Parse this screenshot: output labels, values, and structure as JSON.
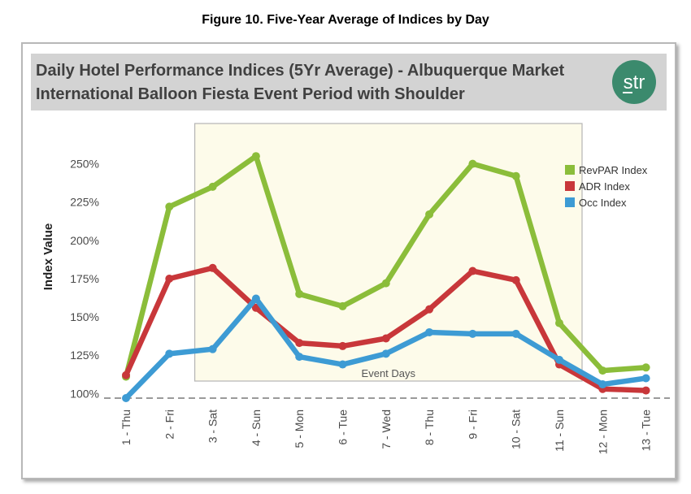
{
  "figure_caption": "Figure 10. Five-Year Average of Indices by Day",
  "logo_text": "str",
  "colors": {
    "header_bg": "#d3d3d3",
    "event_bg": "#fdfbea",
    "logo_bg": "#3b8a6d",
    "baseline": "#9a9a9a"
  },
  "chart_data": {
    "type": "line",
    "title": "Daily Hotel Performance Indices (5Yr Average) - Albuquerque Market",
    "subtitle": "International Balloon Fiesta Event Period with Shoulder",
    "ylabel": "Index Value",
    "xlabel": "",
    "ylim": [
      97,
      262
    ],
    "yticks": [
      100,
      125,
      150,
      175,
      200,
      225,
      250
    ],
    "ytick_labels": [
      "100%",
      "125%",
      "150%",
      "175%",
      "200%",
      "225%",
      "250%"
    ],
    "baseline_value": 97,
    "categories": [
      "1 - Thu",
      "2 - Fri",
      "3 - Sat",
      "4 - Sun",
      "5 - Mon",
      "6 - Tue",
      "7 - Wed",
      "8 - Thu",
      "9 - Fri",
      "10 - Sat",
      "11 - Sun",
      "12 - Mon",
      "13 - Tue"
    ],
    "series": [
      {
        "name": "RevPAR Index",
        "color": "#8bbd3a",
        "values": [
          111,
          222,
          235,
          255,
          165,
          157,
          172,
          217,
          250,
          242,
          146,
          115,
          117
        ]
      },
      {
        "name": "ADR Index",
        "color": "#c8373a",
        "values": [
          112,
          175,
          182,
          156,
          133,
          131,
          136,
          155,
          180,
          174,
          119,
          103,
          102
        ]
      },
      {
        "name": "Occ Index",
        "color": "#3d9bd4",
        "values": [
          97,
          126,
          129,
          162,
          124,
          119,
          126,
          140,
          139,
          139,
          122,
          106,
          110
        ]
      }
    ],
    "event_period": {
      "label": "Event Days",
      "start": "3 - Sat",
      "end": "11 - Sun"
    },
    "legend_position": "top-right"
  }
}
